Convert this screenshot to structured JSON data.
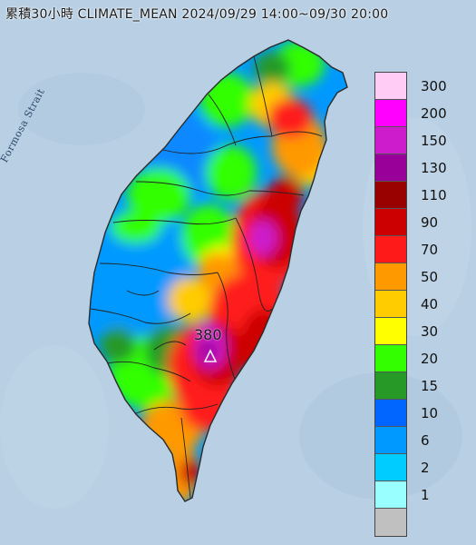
{
  "title": "累積30小時 CLIMATE_MEAN 2024/09/29 14:00~09/30 20:00",
  "strait_label": "Formosa Strait",
  "peak_value": "380",
  "legend": {
    "classes": [
      {
        "label": "300",
        "color": "#ffccf5"
      },
      {
        "label": "200",
        "color": "#ff00ff"
      },
      {
        "label": "150",
        "color": "#cc1ccc"
      },
      {
        "label": "130",
        "color": "#990099"
      },
      {
        "label": "110",
        "color": "#990000"
      },
      {
        "label": "90",
        "color": "#cc0000"
      },
      {
        "label": "70",
        "color": "#ff1a1a"
      },
      {
        "label": "50",
        "color": "#ff9900"
      },
      {
        "label": "40",
        "color": "#ffcc00"
      },
      {
        "label": "30",
        "color": "#ffff00"
      },
      {
        "label": "20",
        "color": "#33ff00"
      },
      {
        "label": "15",
        "color": "#269926"
      },
      {
        "label": "10",
        "color": "#0066ff"
      },
      {
        "label": "6",
        "color": "#0099ff"
      },
      {
        "label": "2",
        "color": "#00ccff"
      },
      {
        "label": "1",
        "color": "#99ffff"
      },
      {
        "label": "",
        "color": "#c0c0c0"
      }
    ]
  },
  "colors": {
    "sea": "#b9d0e4",
    "land_outline": "#2a2a2a"
  }
}
